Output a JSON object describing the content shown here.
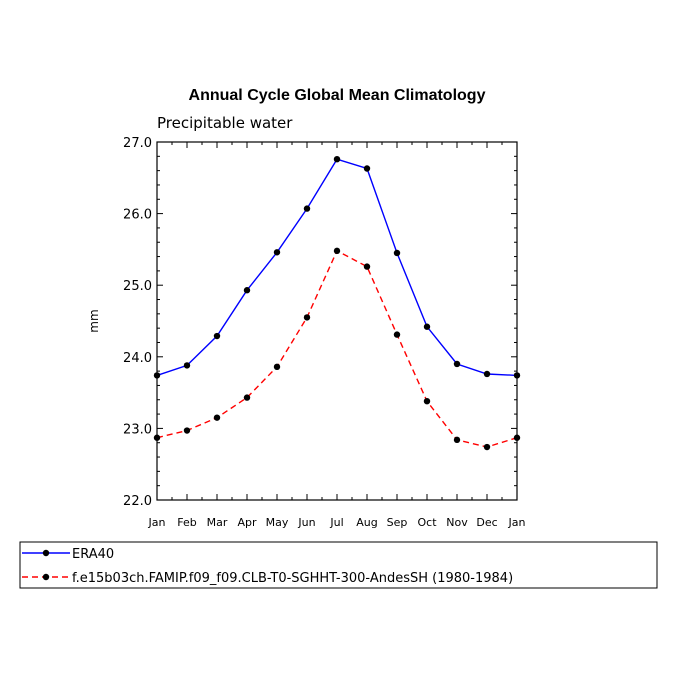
{
  "chart_data": {
    "type": "line",
    "title": "Annual Cycle Global Mean Climatology",
    "subtitle": "Precipitable water",
    "xlabel": "",
    "ylabel": "mm",
    "categories": [
      "Jan",
      "Feb",
      "Mar",
      "Apr",
      "May",
      "Jun",
      "Jul",
      "Aug",
      "Sep",
      "Oct",
      "Nov",
      "Dec",
      "Jan"
    ],
    "ylim": [
      22.0,
      27.0
    ],
    "yticks": [
      "22.0",
      "23.0",
      "24.0",
      "25.0",
      "26.0",
      "27.0"
    ],
    "grid": false,
    "legend_position": "bottom",
    "series": [
      {
        "name": "ERA40",
        "color": "#0000ff",
        "dash": "solid",
        "values": [
          23.74,
          23.88,
          24.29,
          24.93,
          25.46,
          26.07,
          26.76,
          26.63,
          25.45,
          24.42,
          23.9,
          23.76,
          23.74
        ]
      },
      {
        "name": "f.e15b03ch.FAMIP.f09_f09.CLB-T0-SGHHT-300-AndesSH (1980-1984)",
        "color": "#ff0000",
        "dash": "dashed",
        "values": [
          22.87,
          22.97,
          23.15,
          23.43,
          23.86,
          24.55,
          25.48,
          25.26,
          24.31,
          23.38,
          22.84,
          22.74,
          22.87
        ]
      }
    ]
  }
}
